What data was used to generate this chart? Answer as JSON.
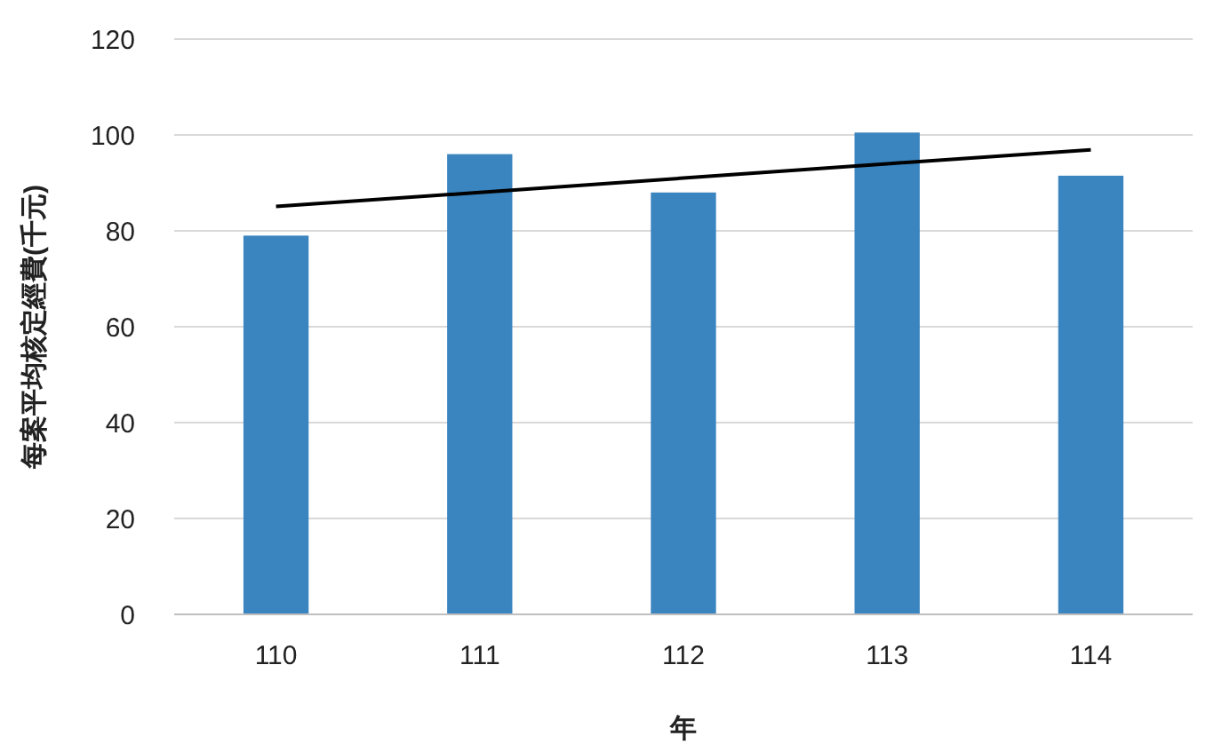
{
  "chart_data": {
    "type": "bar",
    "xlabel": "年",
    "ylabel": "每案平均核定經費(千元)",
    "categories": [
      "110",
      "111",
      "112",
      "113",
      "114"
    ],
    "series": [
      {
        "color": "#3a84bf",
        "values": [
          79,
          96,
          88,
          100.5,
          91.5
        ]
      },
      {
        "type": "line",
        "color": "#000000",
        "values": [
          85.1,
          88,
          91,
          94,
          96.9
        ]
      }
    ],
    "ylim": [
      0,
      120
    ],
    "yticks": [
      0,
      20,
      40,
      60,
      80,
      100,
      120
    ],
    "grid": "y",
    "marker": "none",
    "line_style": "solid"
  }
}
